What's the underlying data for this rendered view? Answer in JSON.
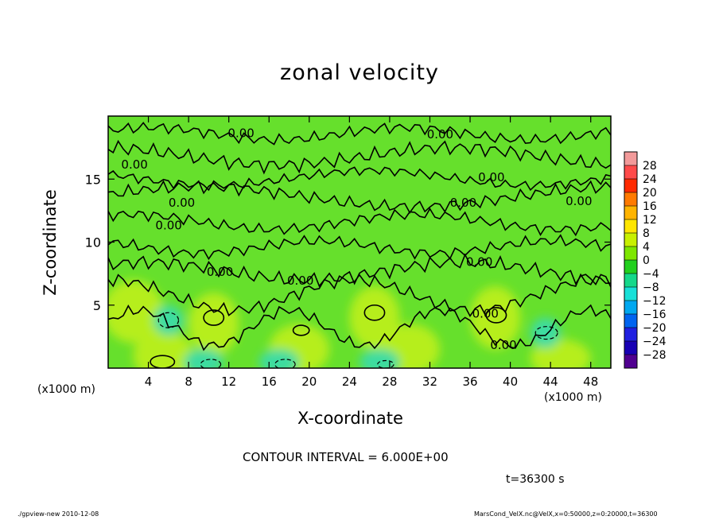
{
  "chart_data": {
    "type": "heatmap",
    "title": "zonal velocity",
    "xlabel": "X-coordinate",
    "ylabel": "Z-coordinate",
    "x_unit_left": "(x1000 m)",
    "x_unit_right": "(x1000 m)",
    "xlim": [
      0,
      50
    ],
    "ylim": [
      0,
      20
    ],
    "x_ticks": [
      4,
      8,
      12,
      16,
      20,
      24,
      28,
      32,
      36,
      40,
      44,
      48
    ],
    "y_ticks": [
      5,
      10,
      15
    ],
    "contour_label": "0.00",
    "contour_label_positions": [
      {
        "x": 11.9,
        "z": 18.7
      },
      {
        "x": 31.7,
        "z": 18.6
      },
      {
        "x": 1.3,
        "z": 16.2
      },
      {
        "x": 36.8,
        "z": 15.2
      },
      {
        "x": 6.0,
        "z": 13.2
      },
      {
        "x": 34.0,
        "z": 13.2
      },
      {
        "x": 45.5,
        "z": 13.3
      },
      {
        "x": 4.7,
        "z": 11.4
      },
      {
        "x": 9.8,
        "z": 7.7
      },
      {
        "x": 17.8,
        "z": 7.0
      },
      {
        "x": 35.6,
        "z": 8.5
      },
      {
        "x": 36.2,
        "z": 4.4
      },
      {
        "x": 38.0,
        "z": 1.9
      }
    ],
    "colorbar": {
      "labels": [
        "28",
        "24",
        "20",
        "16",
        "12",
        "8",
        "4",
        "0",
        "−4",
        "−8",
        "−12",
        "−16",
        "−20",
        "−24",
        "−28"
      ],
      "colors": [
        "#f29a9a",
        "#ff4a4a",
        "#ff2a00",
        "#ff7a00",
        "#ffb400",
        "#ffe600",
        "#c8f000",
        "#7ee600",
        "#22d01e",
        "#15d88a",
        "#18e0d8",
        "#00a8f0",
        "#0064f0",
        "#2020e0",
        "#1800b4",
        "#500090"
      ]
    },
    "contour_interval": "CONTOUR INTERVAL = 6.000E+00",
    "time_label": "t=36300 s",
    "footer_left": "./gpview-new   2010-12-08",
    "footer_right": "MarsCond_VelX.nc@VelX,x=0:50000,z=0:20000,t=36300",
    "field_colors": {
      "background": "#66e02c",
      "positive": "#b6ee1c",
      "negative": "#3cdca0",
      "line": "#000000"
    }
  }
}
